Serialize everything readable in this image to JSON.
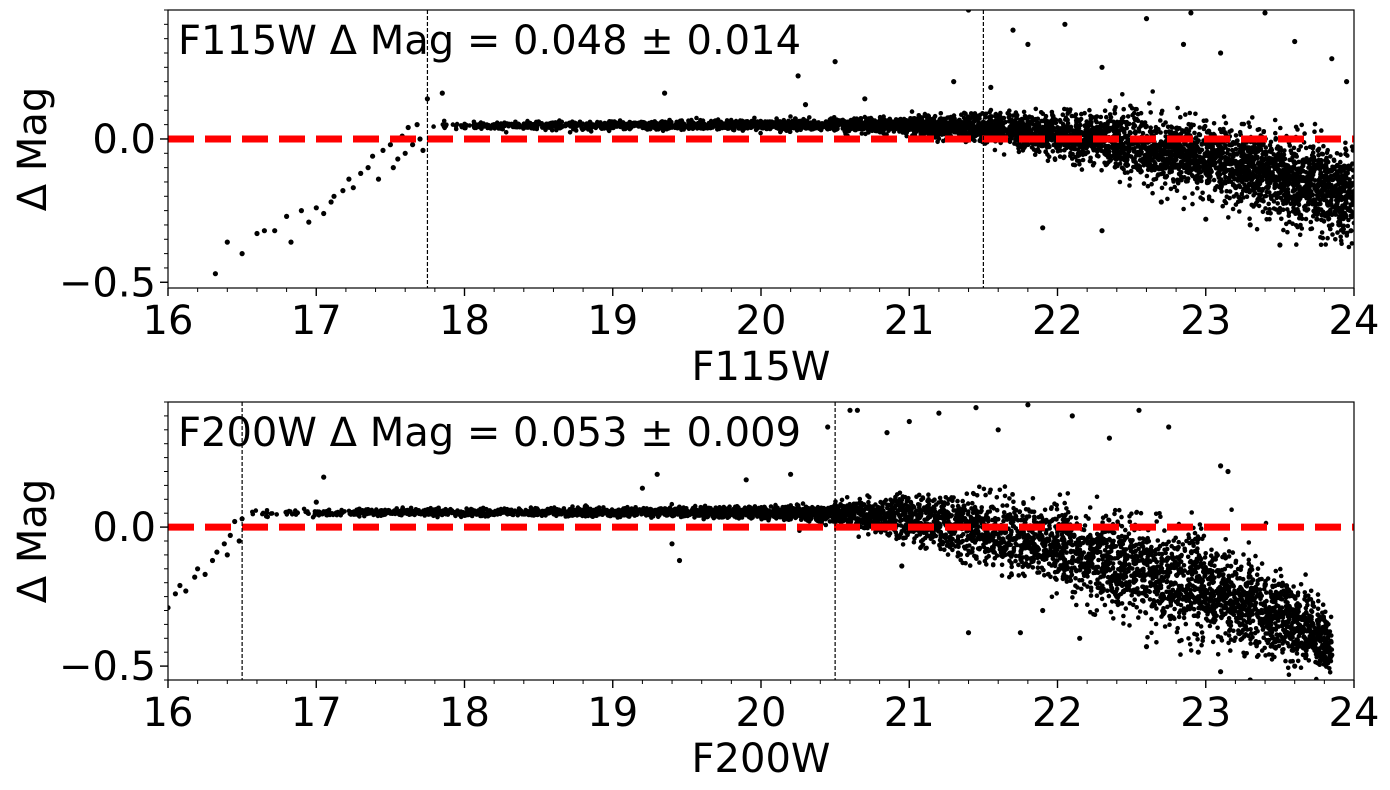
{
  "chart_data": [
    {
      "type": "scatter",
      "title": "F115W Δ Mag = 0.048 ± 0.014",
      "xlabel": "F115W",
      "ylabel": "Δ Mag",
      "xlim": [
        16,
        24
      ],
      "ylim": [
        -0.52,
        0.45
      ],
      "x_ticks": [
        "16",
        "17",
        "18",
        "19",
        "20",
        "21",
        "22",
        "23",
        "24"
      ],
      "y_ticks": [
        {
          "value": 0.0,
          "label": "0.0"
        },
        {
          "value": -0.5,
          "label": "−0.5"
        }
      ],
      "reference_line": {
        "y": 0.0,
        "style": "dashed",
        "color": "#ff0000"
      },
      "vertical_lines": [
        17.75,
        21.5
      ],
      "marker_color": "#000000",
      "series": [
        {
          "points": [
            [
              16.32,
              -0.47
            ],
            [
              16.4,
              -0.36
            ],
            [
              16.5,
              -0.4
            ],
            [
              16.6,
              -0.33
            ],
            [
              16.65,
              -0.32
            ],
            [
              16.72,
              -0.32
            ],
            [
              16.8,
              -0.27
            ],
            [
              16.83,
              -0.36
            ],
            [
              16.9,
              -0.25
            ],
            [
              16.95,
              -0.29
            ],
            [
              17.0,
              -0.24
            ],
            [
              17.05,
              -0.26
            ],
            [
              17.1,
              -0.22
            ],
            [
              17.12,
              -0.2
            ],
            [
              17.18,
              -0.18
            ],
            [
              17.22,
              -0.14
            ],
            [
              17.25,
              -0.17
            ],
            [
              17.3,
              -0.12
            ],
            [
              17.35,
              -0.1
            ],
            [
              17.38,
              -0.06
            ],
            [
              17.42,
              -0.14
            ],
            [
              17.45,
              -0.04
            ],
            [
              17.5,
              -0.02
            ],
            [
              17.52,
              -0.1
            ],
            [
              17.55,
              -0.07
            ],
            [
              17.58,
              0.01
            ],
            [
              17.6,
              -0.05
            ],
            [
              17.62,
              0.04
            ],
            [
              17.65,
              -0.02
            ],
            [
              17.68,
              0.05
            ],
            [
              17.7,
              0.0
            ],
            [
              17.72,
              -0.04
            ],
            [
              17.75,
              0.14
            ],
            [
              17.85,
              0.16
            ],
            [
              18.2,
              0.05
            ],
            [
              18.5,
              0.06
            ],
            [
              19.35,
              0.16
            ],
            [
              20.25,
              0.22
            ],
            [
              20.3,
              0.12
            ],
            [
              20.5,
              0.27
            ],
            [
              20.7,
              0.14
            ],
            [
              21.3,
              0.2
            ],
            [
              21.55,
              0.18
            ],
            [
              21.7,
              0.38
            ],
            [
              21.8,
              0.33
            ],
            [
              22.05,
              0.4
            ],
            [
              22.3,
              0.25
            ],
            [
              22.6,
              0.42
            ],
            [
              22.85,
              0.33
            ],
            [
              23.1,
              0.3
            ],
            [
              23.4,
              0.44
            ],
            [
              23.6,
              0.34
            ],
            [
              23.85,
              0.28
            ],
            [
              23.95,
              0.2
            ],
            [
              21.4,
              0.45
            ],
            [
              22.9,
              0.44
            ],
            [
              21.9,
              -0.31
            ],
            [
              22.3,
              -0.32
            ],
            [
              23.0,
              -0.28
            ],
            [
              23.3,
              -0.3
            ],
            [
              23.5,
              -0.37
            ],
            [
              22.7,
              -0.22
            ],
            [
              23.75,
              -0.28
            ],
            [
              23.9,
              -0.3
            ],
            [
              23.98,
              -0.32
            ],
            [
              23.6,
              -0.25
            ]
          ],
          "bulk_trend": {
            "x": [
              17.75,
              18.5,
              19.5,
              20.5,
              21.0,
              21.5,
              22.0,
              22.5,
              23.0,
              23.5,
              24.0
            ],
            "center": [
              0.046,
              0.047,
              0.048,
              0.049,
              0.045,
              0.035,
              0.015,
              -0.02,
              -0.07,
              -0.13,
              -0.2
            ],
            "spread": [
              0.006,
              0.007,
              0.008,
              0.01,
              0.015,
              0.025,
              0.035,
              0.05,
              0.06,
              0.07,
              0.08
            ]
          }
        }
      ]
    },
    {
      "type": "scatter",
      "title": "F200W Δ Mag = 0.053 ± 0.009",
      "xlabel": "F200W",
      "ylabel": "Δ Mag",
      "xlim": [
        16,
        24
      ],
      "ylim": [
        -0.55,
        0.45
      ],
      "x_ticks": [
        "16",
        "17",
        "18",
        "19",
        "20",
        "21",
        "22",
        "23",
        "24"
      ],
      "y_ticks": [
        {
          "value": 0.0,
          "label": "0.0"
        },
        {
          "value": -0.5,
          "label": "−0.5"
        }
      ],
      "reference_line": {
        "y": 0.0,
        "style": "dashed",
        "color": "#ff0000"
      },
      "vertical_lines": [
        16.5,
        20.5
      ],
      "marker_color": "#000000",
      "series": [
        {
          "points": [
            [
              16.0,
              -0.29
            ],
            [
              16.05,
              -0.24
            ],
            [
              16.08,
              -0.21
            ],
            [
              16.12,
              -0.23
            ],
            [
              16.18,
              -0.18
            ],
            [
              16.2,
              -0.15
            ],
            [
              16.25,
              -0.17
            ],
            [
              16.3,
              -0.12
            ],
            [
              16.33,
              -0.09
            ],
            [
              16.38,
              -0.06
            ],
            [
              16.4,
              -0.1
            ],
            [
              16.42,
              -0.03
            ],
            [
              16.45,
              0.02
            ],
            [
              16.48,
              -0.05
            ],
            [
              16.5,
              0.03
            ],
            [
              17.05,
              0.18
            ],
            [
              17.0,
              0.09
            ],
            [
              19.45,
              -0.12
            ],
            [
              19.4,
              -0.06
            ],
            [
              19.2,
              0.14
            ],
            [
              19.3,
              0.19
            ],
            [
              19.9,
              0.17
            ],
            [
              20.2,
              0.19
            ],
            [
              20.45,
              0.36
            ],
            [
              20.6,
              0.42
            ],
            [
              20.65,
              0.42
            ],
            [
              20.85,
              0.34
            ],
            [
              21.2,
              0.41
            ],
            [
              21.45,
              0.43
            ],
            [
              21.6,
              0.35
            ],
            [
              21.8,
              0.44
            ],
            [
              22.1,
              0.4
            ],
            [
              22.35,
              0.32
            ],
            [
              22.55,
              0.42
            ],
            [
              22.75,
              0.36
            ],
            [
              23.1,
              0.22
            ],
            [
              23.15,
              0.2
            ],
            [
              21.0,
              0.38
            ],
            [
              21.4,
              -0.38
            ],
            [
              21.75,
              -0.38
            ],
            [
              22.15,
              -0.4
            ],
            [
              22.6,
              -0.43
            ],
            [
              22.95,
              -0.45
            ],
            [
              23.1,
              -0.52
            ],
            [
              23.3,
              -0.55
            ],
            [
              23.6,
              -0.5
            ],
            [
              20.95,
              -0.14
            ],
            [
              21.9,
              -0.3
            ],
            [
              23.8,
              -0.48
            ],
            [
              23.85,
              -0.46
            ],
            [
              23.75,
              -0.44
            ],
            [
              23.7,
              -0.42
            ]
          ],
          "bulk_trend": {
            "x": [
              16.5,
              17.5,
              18.5,
              19.5,
              20.5,
              21.0,
              21.5,
              22.0,
              22.5,
              23.0,
              23.5,
              23.85
            ],
            "center": [
              0.05,
              0.052,
              0.053,
              0.054,
              0.05,
              0.03,
              -0.01,
              -0.07,
              -0.14,
              -0.22,
              -0.32,
              -0.42
            ],
            "spread": [
              0.006,
              0.006,
              0.007,
              0.008,
              0.015,
              0.04,
              0.06,
              0.07,
              0.08,
              0.09,
              0.07,
              0.05
            ]
          }
        }
      ]
    }
  ]
}
